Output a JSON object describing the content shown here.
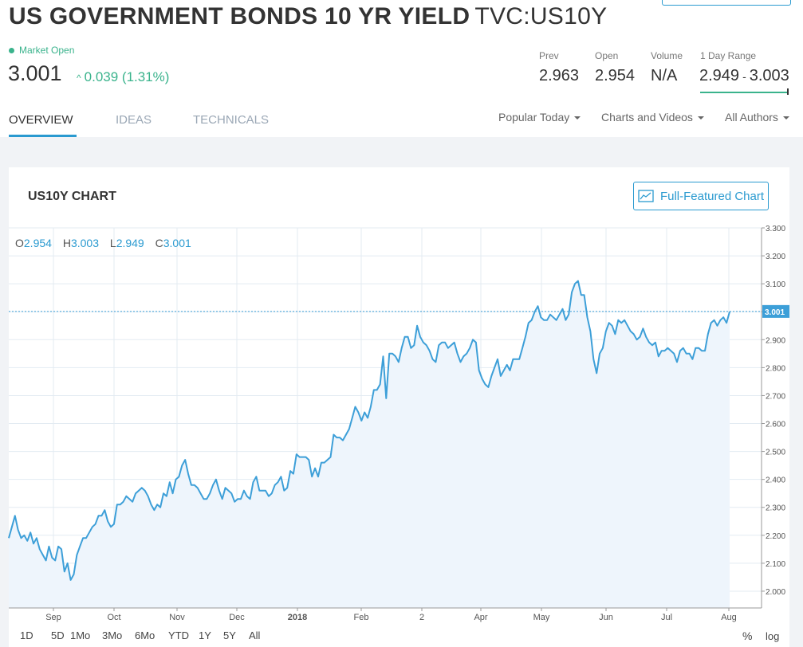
{
  "header": {
    "title": "US GOVERNMENT BONDS 10 YR YIELD",
    "symbol": "TVC:US10Y",
    "market_status": "Market Open",
    "price": "3.001",
    "change": "0.039 (1.31%)",
    "change_color": "#3ab38c"
  },
  "stats": {
    "prev_label": "Prev",
    "prev_value": "2.963",
    "open_label": "Open",
    "open_value": "2.954",
    "volume_label": "Volume",
    "volume_value": "N/A",
    "range_label": "1 Day Range",
    "range_low": "2.949",
    "range_sep": "-",
    "range_high": "3.003"
  },
  "tabs": [
    "OVERVIEW",
    "IDEAS",
    "TECHNICALS"
  ],
  "filters": [
    "Popular Today",
    "Charts and Videos",
    "All Authors"
  ],
  "chart_panel": {
    "title": "US10Y CHART",
    "button": "Full-Featured Chart",
    "ohlc": {
      "o_label": "O",
      "o": "2.954",
      "h_label": "H",
      "h": "3.003",
      "l_label": "L",
      "l": "2.949",
      "c_label": "C",
      "c": "3.001"
    },
    "range_buttons": [
      "1D",
      "5D",
      "1Mo",
      "3Mo",
      "6Mo",
      "YTD",
      "1Y",
      "5Y",
      "All"
    ],
    "pct_label": "%",
    "log_label": "log"
  },
  "chart_data": {
    "type": "area",
    "y_ticks": [
      "2.000",
      "2.100",
      "2.200",
      "2.300",
      "2.400",
      "2.500",
      "2.600",
      "2.700",
      "2.800",
      "2.900",
      "3.000",
      "3.100",
      "3.200",
      "3.300"
    ],
    "x_ticks": [
      "Sep",
      "Oct",
      "Nov",
      "Dec",
      "2018",
      "Feb",
      "2",
      "Apr",
      "May",
      "Jun",
      "Jul",
      "Aug"
    ],
    "ylim": [
      1.94,
      3.3
    ],
    "last_value": 3.001,
    "last_label": "3.001",
    "line_color": "#3d9fd8",
    "fill_color": "#eef5fc",
    "grid": true,
    "series": [
      {
        "values": [
          2.19,
          2.23,
          2.27,
          2.22,
          2.19,
          2.2,
          2.18,
          2.21,
          2.17,
          2.19,
          2.15,
          2.13,
          2.11,
          2.16,
          2.12,
          2.11,
          2.16,
          2.15,
          2.07,
          2.1,
          2.04,
          2.06,
          2.13,
          2.16,
          2.19,
          2.19,
          2.21,
          2.23,
          2.24,
          2.27,
          2.27,
          2.29,
          2.25,
          2.23,
          2.24,
          2.31,
          2.31,
          2.32,
          2.34,
          2.33,
          2.32,
          2.35,
          2.36,
          2.37,
          2.36,
          2.34,
          2.31,
          2.29,
          2.31,
          2.3,
          2.35,
          2.34,
          2.39,
          2.35,
          2.4,
          2.41,
          2.45,
          2.47,
          2.42,
          2.38,
          2.38,
          2.37,
          2.35,
          2.33,
          2.33,
          2.35,
          2.38,
          2.4,
          2.36,
          2.33,
          2.37,
          2.36,
          2.35,
          2.32,
          2.33,
          2.33,
          2.36,
          2.34,
          2.33,
          2.39,
          2.41,
          2.36,
          2.36,
          2.36,
          2.34,
          2.35,
          2.38,
          2.39,
          2.41,
          2.36,
          2.37,
          2.43,
          2.42,
          2.49,
          2.48,
          2.48,
          2.48,
          2.47,
          2.41,
          2.44,
          2.41,
          2.46,
          2.46,
          2.47,
          2.48,
          2.56,
          2.55,
          2.55,
          2.54,
          2.56,
          2.58,
          2.62,
          2.66,
          2.64,
          2.61,
          2.64,
          2.62,
          2.66,
          2.72,
          2.72,
          2.74,
          2.84,
          2.69,
          2.85,
          2.85,
          2.84,
          2.82,
          2.87,
          2.91,
          2.91,
          2.87,
          2.88,
          2.95,
          2.91,
          2.89,
          2.88,
          2.86,
          2.83,
          2.82,
          2.88,
          2.89,
          2.89,
          2.87,
          2.88,
          2.89,
          2.85,
          2.82,
          2.84,
          2.85,
          2.87,
          2.9,
          2.89,
          2.79,
          2.76,
          2.74,
          2.73,
          2.77,
          2.8,
          2.83,
          2.77,
          2.79,
          2.81,
          2.79,
          2.83,
          2.83,
          2.83,
          2.87,
          2.91,
          2.96,
          2.97,
          3.0,
          3.02,
          2.98,
          2.97,
          2.97,
          2.99,
          2.98,
          2.97,
          2.99,
          3.01,
          2.97,
          2.99,
          3.07,
          3.1,
          3.11,
          3.06,
          3.06,
          2.98,
          2.93,
          2.83,
          2.78,
          2.85,
          2.87,
          2.93,
          2.96,
          2.95,
          2.92,
          2.97,
          2.96,
          2.97,
          2.95,
          2.93,
          2.92,
          2.9,
          2.91,
          2.94,
          2.91,
          2.89,
          2.88,
          2.89,
          2.84,
          2.86,
          2.86,
          2.87,
          2.86,
          2.85,
          2.82,
          2.86,
          2.87,
          2.85,
          2.85,
          2.83,
          2.87,
          2.87,
          2.86,
          2.86,
          2.92,
          2.96,
          2.97,
          2.95,
          2.97,
          2.98,
          2.96,
          3.0
        ]
      }
    ]
  }
}
